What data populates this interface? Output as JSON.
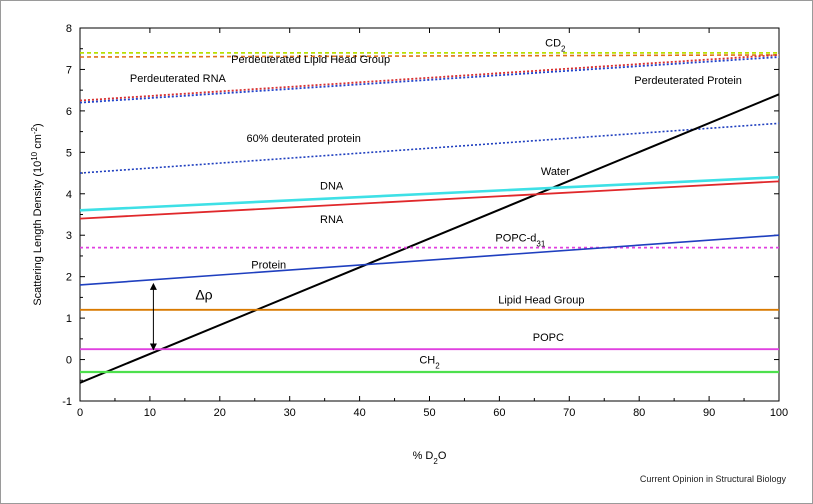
{
  "credit": "Current Opinion in Structural Biology",
  "chart_data": {
    "type": "line",
    "xlabel": "% D",
    "xlabel_sub": "2",
    "xlabel_tail": "O",
    "ylabel": "Scattering Length Density (10",
    "ylabel_sup": "10",
    "ylabel_mid": " cm",
    "ylabel_sup2": "-2",
    "ylabel_tail": ")",
    "xlim": [
      0,
      100
    ],
    "ylim": [
      -1,
      8
    ],
    "xticks": [
      "0",
      "10",
      "20",
      "30",
      "40",
      "50",
      "60",
      "70",
      "80",
      "90",
      "100"
    ],
    "yticks": [
      "-1",
      "0",
      "1",
      "2",
      "3",
      "4",
      "5",
      "6",
      "7",
      "8"
    ],
    "series": [
      {
        "name": "CD",
        "sub": "2",
        "x": [
          0,
          100
        ],
        "y": [
          7.4,
          7.4
        ],
        "color": "#b8e000",
        "dash": "4,3",
        "width": 1.8,
        "label_x": 68,
        "label_y": 7.55
      },
      {
        "name": "Perdeuterated Lipid Head Group",
        "x": [
          0,
          100
        ],
        "y": [
          7.3,
          7.35
        ],
        "color": "#e0701a",
        "dash": "4,3",
        "width": 1.6,
        "label_x": 33,
        "label_y": 7.15
      },
      {
        "name": "Perdeuterated RNA",
        "x": [
          0,
          100
        ],
        "y": [
          6.25,
          7.35
        ],
        "color": "#d93030",
        "dash": "2,2",
        "width": 1.8,
        "label_x": 14,
        "label_y": 6.7
      },
      {
        "name": "Perdeuterated Protein",
        "x": [
          0,
          100
        ],
        "y": [
          6.2,
          7.3
        ],
        "color": "#2244cc",
        "dash": "2,2",
        "width": 1.8,
        "label_x": 87,
        "label_y": 6.65
      },
      {
        "name": "60% deuterated protein",
        "x": [
          0,
          100
        ],
        "y": [
          4.5,
          5.7
        ],
        "color": "#1f3fbf",
        "dash": "2,2",
        "width": 1.6,
        "label_x": 32,
        "label_y": 5.25
      },
      {
        "name": "Water",
        "x": [
          0,
          100
        ],
        "y": [
          -0.56,
          6.4
        ],
        "color": "#000000",
        "dash": "",
        "width": 2.0,
        "label_x": 68,
        "label_y": 4.45
      },
      {
        "name": "DNA",
        "x": [
          0,
          100
        ],
        "y": [
          3.6,
          4.4
        ],
        "color": "#3ee0e6",
        "dash": "",
        "width": 2.6,
        "label_x": 36,
        "label_y": 4.1
      },
      {
        "name": "RNA",
        "x": [
          0,
          100
        ],
        "y": [
          3.4,
          4.3
        ],
        "color": "#e0282b",
        "dash": "",
        "width": 1.8,
        "label_x": 36,
        "label_y": 3.3
      },
      {
        "name": "POPC-d",
        "sub": "31",
        "x": [
          0,
          100
        ],
        "y": [
          2.7,
          2.7
        ],
        "color": "#e040e0",
        "dash": "3,3",
        "width": 1.8,
        "label_x": 63,
        "label_y": 2.85
      },
      {
        "name": "Protein",
        "x": [
          0,
          100
        ],
        "y": [
          1.8,
          3.0
        ],
        "color": "#1f3fbf",
        "dash": "",
        "width": 1.6,
        "label_x": 27,
        "label_y": 2.2
      },
      {
        "name": "Lipid Head Group",
        "x": [
          0,
          100
        ],
        "y": [
          1.2,
          1.2
        ],
        "color": "#d97a00",
        "dash": "",
        "width": 1.8,
        "label_x": 66,
        "label_y": 1.35
      },
      {
        "name": "POPC",
        "x": [
          0,
          100
        ],
        "y": [
          0.25,
          0.25
        ],
        "color": "#e040e0",
        "dash": "",
        "width": 1.8,
        "label_x": 67,
        "label_y": 0.45
      },
      {
        "name": "CH",
        "sub": "2",
        "x": [
          0,
          100
        ],
        "y": [
          -0.3,
          -0.3
        ],
        "color": "#4de04d",
        "dash": "",
        "width": 2.2,
        "label_x": 50,
        "label_y": -0.1
      }
    ],
    "annotation": {
      "text": "Δρ",
      "x": 10.5,
      "y_top": 1.85,
      "y_bottom": 0.22,
      "label_x": 16.5,
      "label_y": 1.45
    }
  }
}
